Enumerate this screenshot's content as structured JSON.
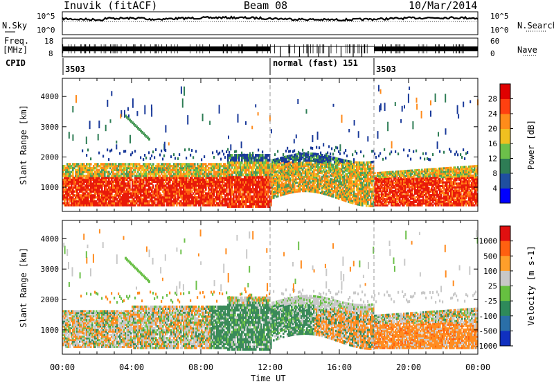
{
  "header": {
    "station": "Inuvik (fitACF)",
    "beam": "Beam 08",
    "date": "10/Mar/2014"
  },
  "nsky_panel": {
    "label": "N.Sky",
    "right_label": "N.Search",
    "left_ticks": [
      "10^5",
      "10^0"
    ],
    "right_ticks": [
      "10^5",
      "10^0"
    ]
  },
  "freq_panel": {
    "label_line1": "Freq.",
    "label_line2": "[MHz]",
    "left_ticks": [
      "18",
      "8"
    ],
    "right_ticks": [
      "60",
      "0"
    ],
    "right_label": "Nave"
  },
  "cpid": {
    "label": "CPID",
    "segments": [
      {
        "start_hour": 0,
        "text": "3503"
      },
      {
        "start_hour": 12,
        "text": "normal (fast) 151"
      },
      {
        "start_hour": 18,
        "text": "3503"
      }
    ]
  },
  "chart_data": [
    {
      "type": "heatmap",
      "panel": "power",
      "ylabel": "Slant Range [km]",
      "ylim": [
        200,
        4600
      ],
      "yticks": [
        "4000",
        "3000",
        "2000",
        "1000"
      ],
      "xlim_hours": [
        0,
        24
      ],
      "colorbar": {
        "label": "Power [dB]",
        "ticks": [
          "28",
          "24",
          "20",
          "16",
          "12",
          "8",
          "4"
        ],
        "colors": [
          "#0000ff",
          "#1f4fa0",
          "#2e7d55",
          "#6cc04a",
          "#f0c020",
          "#ff8c1a",
          "#ff4010",
          "#e00000"
        ]
      }
    },
    {
      "type": "heatmap",
      "panel": "velocity",
      "ylabel": "Slant Range [km]",
      "ylim": [
        200,
        4600
      ],
      "yticks": [
        "4000",
        "3000",
        "2000",
        "1000"
      ],
      "xlim_hours": [
        0,
        24
      ],
      "xticks": [
        "00:00",
        "04:00",
        "08:00",
        "12:00",
        "16:00",
        "20:00",
        "00:00"
      ],
      "xlabel": "Time UT",
      "colorbar": {
        "label": "Velocity [m s-1]",
        "ticks": [
          "1000",
          "500",
          "100",
          "25",
          "-25",
          "-100",
          "-500",
          "-1000"
        ],
        "colors": [
          "#1030c0",
          "#2a6fa8",
          "#2e8a5a",
          "#66c040",
          "#c8c8c8",
          "#ff9f2a",
          "#ff6010",
          "#e01010"
        ]
      }
    }
  ],
  "colors": {
    "power_red": "#e81a0a",
    "power_orange": "#ff8a1a",
    "power_green": "#4a9a5a",
    "power_blue": "#1a3a9a",
    "vel_green": "#3a8a5a",
    "vel_orange": "#ff8c20",
    "vel_gray": "#c8c8c8"
  }
}
